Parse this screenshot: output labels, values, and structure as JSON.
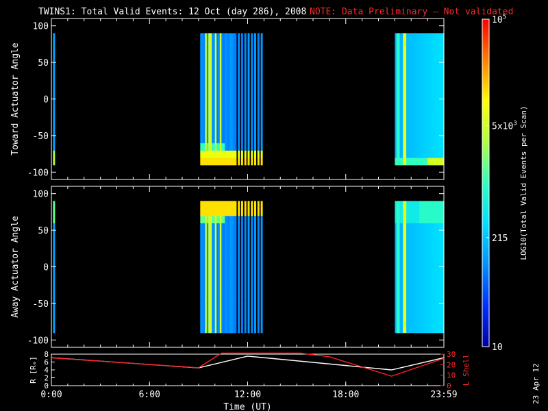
{
  "header": {
    "title": "TWINS1: Total Valid Events: 12 Oct (day 286), 2008",
    "note": "NOTE: Data Preliminary — Not validated"
  },
  "side_stamp": "23 Apr 12",
  "colors": {
    "note": "#ff2a2a",
    "orbit_r": "#ffffff",
    "orbit_lshell": "#ff2020"
  },
  "chart_data": [
    {
      "type": "heatmap",
      "name": "toward",
      "ylabel": "Toward Actuator Angle",
      "ylim": [
        -110,
        110
      ],
      "yticks": [
        100,
        50,
        0,
        -50,
        -100
      ],
      "xlim": [
        0,
        24
      ],
      "segments": [
        [
          0.1,
          0.2
        ],
        [
          9.1,
          12.9
        ],
        [
          21.0,
          24.0
        ]
      ],
      "profile": "toward"
    },
    {
      "type": "heatmap",
      "name": "away",
      "ylabel": "Away Actuator Angle",
      "ylim": [
        -110,
        110
      ],
      "yticks": [
        100,
        50,
        0,
        -50,
        -100
      ],
      "xlim": [
        0,
        24
      ],
      "segments": [
        [
          0.1,
          0.2
        ],
        [
          9.1,
          12.9
        ],
        [
          21.0,
          24.0
        ]
      ],
      "profile": "away"
    },
    {
      "type": "line",
      "name": "orbit",
      "xlabel": "Time (UT)",
      "xticks": [
        "0:00",
        "6:00",
        "12:00",
        "18:00",
        "23:59"
      ],
      "xtick_values": [
        0,
        6,
        12,
        18,
        24
      ],
      "xlim": [
        0,
        24
      ],
      "left_axis": {
        "label": "R [Rₑ]",
        "ylim": [
          0,
          8
        ],
        "ticks": [
          0,
          2,
          4,
          6,
          8
        ]
      },
      "right_axis": {
        "label": "L Shell",
        "ylim": [
          0,
          30
        ],
        "ticks": [
          0,
          10,
          20,
          30
        ]
      },
      "series": [
        {
          "axis": "left",
          "x": [
            0,
            9.0,
            12.0,
            20.8,
            24.0
          ],
          "y": [
            7.1,
            4.5,
            7.5,
            4.0,
            7.1
          ]
        },
        {
          "axis": "right",
          "x": [
            0,
            9.0,
            10.4,
            15.2,
            17.0,
            20.8,
            24.0
          ],
          "y": [
            26.5,
            17.0,
            31,
            31,
            27.5,
            9.0,
            26.0
          ]
        }
      ]
    }
  ],
  "colorbar": {
    "label": "LOG10(Total Valid Events per Scan)",
    "range": [
      10,
      100000
    ],
    "ticks": [
      {
        "value": 100000,
        "label": "10^5"
      },
      {
        "value": 5000,
        "label": "5x10^3"
      },
      {
        "value": 215,
        "label": "215"
      },
      {
        "value": 10,
        "label": "10"
      }
    ],
    "colors": [
      "#0000a0",
      "#0030ff",
      "#0090ff",
      "#00e0ff",
      "#30ffc0",
      "#b0ff40",
      "#ffff00",
      "#ff8000",
      "#ff0000"
    ]
  }
}
